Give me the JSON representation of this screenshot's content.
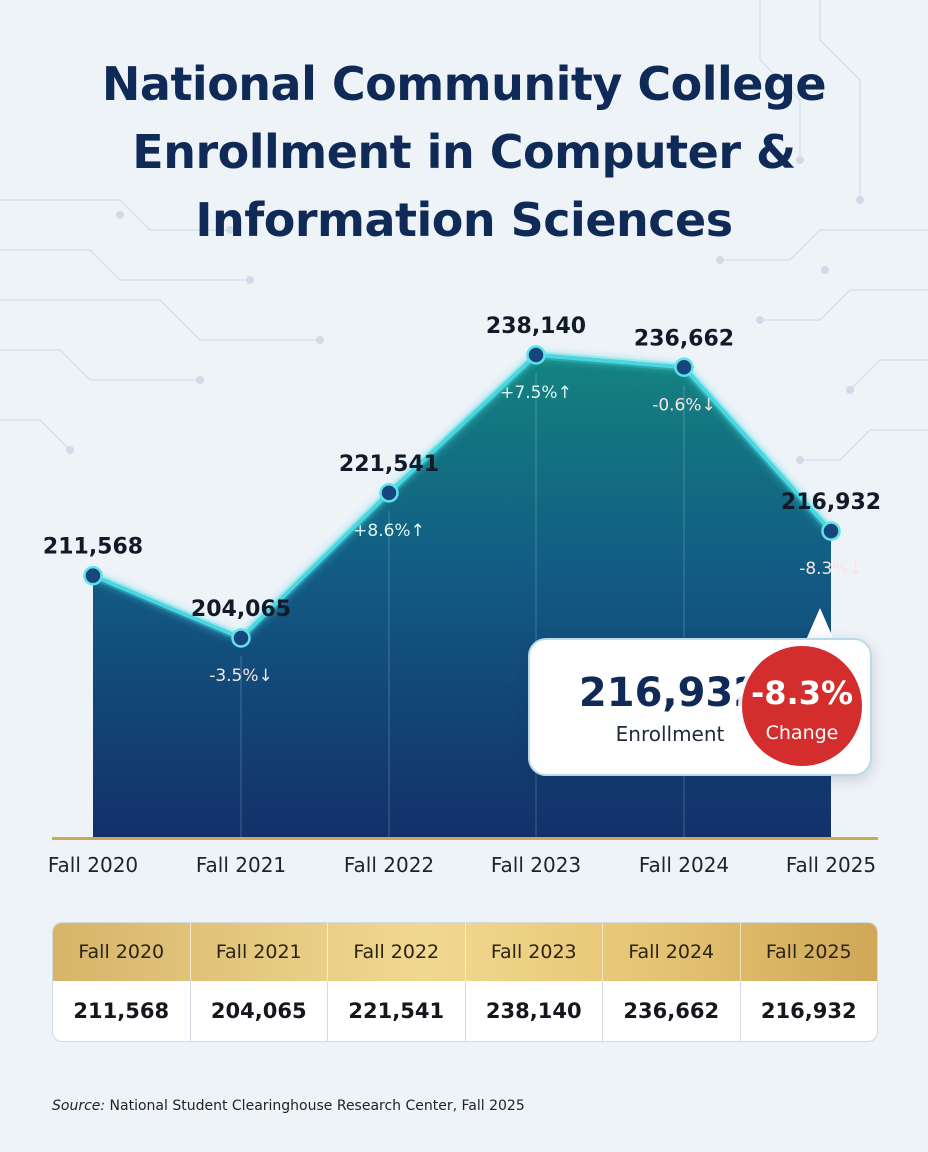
{
  "title": {
    "line1": "National Community College",
    "line2": "Enrollment in Computer &",
    "line3": "Information Sciences"
  },
  "chart_data": {
    "type": "area",
    "categories": [
      "Fall 2020",
      "Fall 2021",
      "Fall 2022",
      "Fall 2023",
      "Fall 2024",
      "Fall 2025"
    ],
    "values": [
      211568,
      204065,
      221541,
      238140,
      236662,
      216932
    ],
    "value_labels": [
      "211,568",
      "204,065",
      "221,541",
      "238,140",
      "236,662",
      "216,932"
    ],
    "change_labels": [
      "",
      "-3.5%↓",
      "+8.6%↑",
      "+7.5%↑",
      "-0.6%↓",
      "-8.3%↓"
    ],
    "grid": false,
    "colors": {
      "area_top": "#14837f",
      "area_bottom": "#13306b",
      "line": "#49d7e0",
      "baseline": "#c9a95a"
    }
  },
  "callout": {
    "value": "216,932",
    "label": "Enrollment",
    "badge_value": "-8.3%",
    "badge_label": "Change"
  },
  "table": {
    "headers": [
      "Fall 2020",
      "Fall 2021",
      "Fall 2022",
      "Fall 2023",
      "Fall 2024",
      "Fall 2025"
    ],
    "values": [
      "211,568",
      "204,065",
      "221,541",
      "238,140",
      "236,662",
      "216,932"
    ]
  },
  "source": {
    "label": "Source:",
    "text": " National Student Clearinghouse Research Center, Fall 2025"
  }
}
